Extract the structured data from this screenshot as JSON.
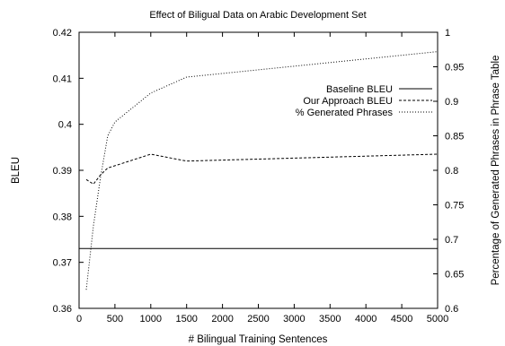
{
  "chart_data": {
    "type": "line",
    "title": "Effect of Biligual Data on Arabic Development Set",
    "xlabel": "# Bilingual Training Sentences",
    "ylabel": "BLEU",
    "y2label": "Percentage of Generated Phrases in Phrase Table",
    "xlim": [
      0,
      5000
    ],
    "ylim": [
      0.36,
      0.42
    ],
    "y2lim": [
      0.6,
      1.0
    ],
    "x_ticks": [
      0,
      500,
      1000,
      1500,
      2000,
      2500,
      3000,
      3500,
      4000,
      4500,
      5000
    ],
    "y_ticks": [
      0.36,
      0.37,
      0.38,
      0.39,
      0.4,
      0.41,
      0.42
    ],
    "y2_ticks": [
      0.6,
      0.65,
      0.7,
      0.75,
      0.8,
      0.85,
      0.9,
      0.95,
      1
    ],
    "grid": false,
    "legend_position": "top-right",
    "series": [
      {
        "name": "Baseline BLEU",
        "axis": "left",
        "style": "solid",
        "x": [
          0,
          5000
        ],
        "values": [
          0.373,
          0.373
        ]
      },
      {
        "name": "Our Approach BLEU",
        "axis": "left",
        "style": "dashed",
        "x": [
          100,
          200,
          300,
          400,
          500,
          1000,
          1500,
          5000
        ],
        "values": [
          0.388,
          0.387,
          0.389,
          0.3905,
          0.391,
          0.3935,
          0.392,
          0.3935
        ]
      },
      {
        "name": "% Generated Phrases",
        "axis": "right",
        "style": "dotted",
        "x": [
          100,
          200,
          300,
          400,
          500,
          1000,
          1500,
          5000
        ],
        "values": [
          0.627,
          0.72,
          0.79,
          0.85,
          0.87,
          0.912,
          0.935,
          0.972
        ]
      }
    ]
  }
}
